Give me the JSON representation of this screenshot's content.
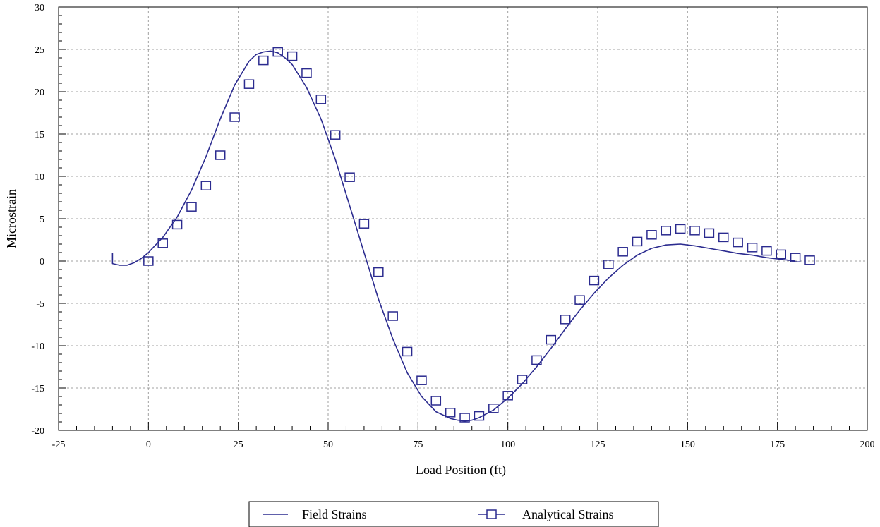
{
  "chart_data": {
    "type": "line",
    "xlabel": "Load Position (ft)",
    "ylabel": "Microstrain",
    "xlim": [
      -25,
      200
    ],
    "ylim": [
      -20,
      30
    ],
    "x_ticks": [
      -25,
      0,
      25,
      50,
      75,
      100,
      125,
      150,
      175,
      200
    ],
    "y_ticks": [
      -20,
      -15,
      -10,
      -5,
      0,
      5,
      10,
      15,
      20,
      25,
      30
    ],
    "grid": true,
    "legend_position": "bottom",
    "colors": {
      "series": "#2b2b8f",
      "grid": "#a0a0a0",
      "axis": "#000000"
    },
    "series": [
      {
        "name": "Field Strains",
        "style": "line",
        "x": [
          -10,
          -10,
          -8,
          -6,
          -4,
          -2,
          0,
          4,
          8,
          12,
          16,
          20,
          24,
          28,
          30,
          32,
          34,
          36,
          38,
          40,
          44,
          48,
          52,
          56,
          60,
          64,
          68,
          72,
          76,
          80,
          84,
          86,
          88,
          90,
          92,
          96,
          100,
          104,
          108,
          112,
          116,
          120,
          124,
          128,
          132,
          136,
          140,
          144,
          148,
          152,
          156,
          160,
          164,
          168,
          172,
          176,
          180
        ],
        "y": [
          1.0,
          -0.3,
          -0.5,
          -0.5,
          -0.2,
          0.3,
          1.0,
          2.8,
          5.2,
          8.4,
          12.3,
          16.8,
          20.8,
          23.6,
          24.4,
          24.7,
          24.8,
          24.6,
          24.0,
          23.2,
          20.5,
          16.8,
          12.0,
          6.5,
          1.0,
          -4.5,
          -9.2,
          -13.2,
          -16.0,
          -17.8,
          -18.6,
          -18.8,
          -18.9,
          -18.8,
          -18.5,
          -17.6,
          -16.2,
          -14.5,
          -12.5,
          -10.3,
          -8.0,
          -5.8,
          -3.8,
          -2.0,
          -0.5,
          0.7,
          1.5,
          1.9,
          2.0,
          1.8,
          1.5,
          1.2,
          0.9,
          0.7,
          0.4,
          0.2,
          0.0
        ]
      },
      {
        "name": "Analytical Strains",
        "style": "markers",
        "x": [
          0,
          4,
          8,
          12,
          16,
          20,
          24,
          28,
          32,
          36,
          40,
          44,
          48,
          52,
          56,
          60,
          64,
          68,
          72,
          76,
          80,
          84,
          88,
          92,
          96,
          100,
          104,
          108,
          112,
          116,
          120,
          124,
          128,
          132,
          136,
          140,
          144,
          148,
          152,
          156,
          160,
          164,
          168,
          172,
          176,
          180,
          184
        ],
        "y": [
          0.0,
          2.1,
          4.3,
          6.4,
          8.9,
          12.5,
          17.0,
          20.9,
          23.7,
          24.7,
          24.2,
          22.2,
          19.1,
          14.9,
          9.9,
          4.4,
          -1.3,
          -6.5,
          -10.7,
          -14.1,
          -16.5,
          -17.9,
          -18.5,
          -18.3,
          -17.4,
          -15.9,
          -14.0,
          -11.7,
          -9.3,
          -6.9,
          -4.6,
          -2.3,
          -0.4,
          1.1,
          2.3,
          3.1,
          3.6,
          3.8,
          3.6,
          3.3,
          2.8,
          2.2,
          1.6,
          1.2,
          0.8,
          0.4,
          0.1
        ]
      }
    ]
  }
}
